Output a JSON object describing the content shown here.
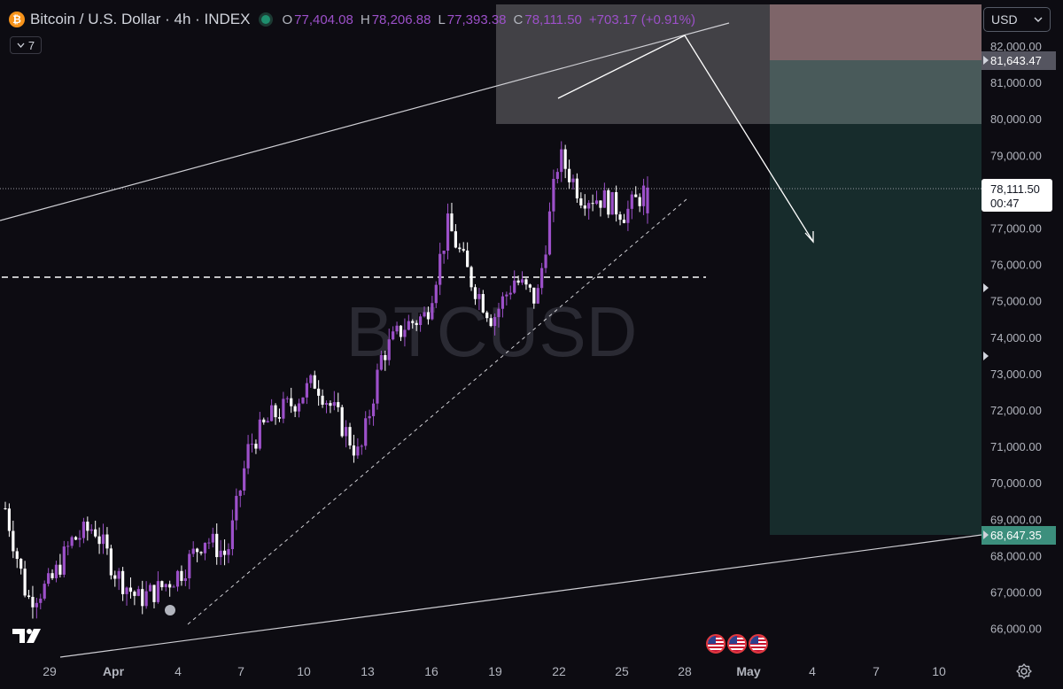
{
  "header": {
    "title": "Bitcoin / U.S. Dollar · 4h · INDEX",
    "symbol_icon": "bitcoin-icon",
    "open_label": "O",
    "open": "77,404.08",
    "high_label": "H",
    "high": "78,206.88",
    "low_label": "L",
    "low": "77,393.38",
    "close_label": "C",
    "close": "78,111.50",
    "change": "+703.17 (+0.91%)"
  },
  "indicators_button": {
    "count": "7",
    "icon": "chevron-down-icon"
  },
  "currency_selector": {
    "value": "USD",
    "icon": "chevron-down-icon"
  },
  "watermark": "BTCUSD",
  "price_labels": {
    "last_price": "78,111.50",
    "countdown": "00:47",
    "stop_price": "81,643.47",
    "target_price": "68,647.35"
  },
  "colors": {
    "background": "#0d0c12",
    "candle_up": "#9c50c9",
    "candle_down": "#ffffff",
    "stop_zone": "#5a3a3f",
    "target_zone": "#172c2c",
    "target_label": "#3c8f7d"
  },
  "chart_data": {
    "type": "candlestick",
    "timeframe": "4h",
    "y_ticks": [
      66000,
      67000,
      68000,
      69000,
      70000,
      71000,
      72000,
      73000,
      74000,
      75000,
      76000,
      77000,
      78000,
      79000,
      80000,
      81000,
      82000
    ],
    "y_tick_labels": [
      "66,000.00",
      "67,000.00",
      "68,000.00",
      "69,000.00",
      "70,000.00",
      "71,000.00",
      "72,000.00",
      "73,000.00",
      "74,000.00",
      "75,000.00",
      "76,000.00",
      "77,000.00",
      "78,000.00",
      "79,000.00",
      "80,000.00",
      "81,000.00",
      "82,000.00"
    ],
    "x_labels": [
      "29",
      "Apr",
      "4",
      "7",
      "10",
      "13",
      "16",
      "19",
      "22",
      "25",
      "28",
      "May",
      "4",
      "7",
      "10"
    ],
    "ylim": [
      65300,
      83200
    ],
    "grid": false,
    "close_path": [
      [
        "Mar 28",
        69300
      ],
      [
        "Mar 29",
        66800
      ],
      [
        "Mar 30",
        67200
      ],
      [
        "Mar 31",
        68400
      ],
      [
        "Apr 1",
        68800
      ],
      [
        "Apr 2",
        67500
      ],
      [
        "Apr 3",
        66800
      ],
      [
        "Apr 4",
        67100
      ],
      [
        "Apr 5",
        67600
      ],
      [
        "Apr 6",
        68500
      ],
      [
        "Apr 7",
        68000
      ],
      [
        "Apr 8",
        71000
      ],
      [
        "Apr 9",
        71800
      ],
      [
        "Apr 10",
        72200
      ],
      [
        "Apr 11",
        72800
      ],
      [
        "Apr 12",
        71800
      ],
      [
        "Apr 13",
        70700
      ],
      [
        "Apr 14",
        73500
      ],
      [
        "Apr 15",
        74300
      ],
      [
        "Apr 16",
        74600
      ],
      [
        "Apr 17",
        77100
      ],
      [
        "Apr 18",
        75600
      ],
      [
        "Apr 19",
        74500
      ],
      [
        "Apr 20",
        75600
      ],
      [
        "Apr 21",
        75000
      ],
      [
        "Apr 22",
        79000
      ],
      [
        "Apr 23",
        77900
      ],
      [
        "Apr 24",
        77800
      ],
      [
        "Apr 25",
        77400
      ],
      [
        "Apr 26",
        78111.5
      ]
    ],
    "horizontal_levels": [
      {
        "price": 75700,
        "style": "dashed"
      }
    ],
    "position_tool": {
      "type": "short",
      "stop": 81643.47,
      "target": 68647.35
    }
  }
}
